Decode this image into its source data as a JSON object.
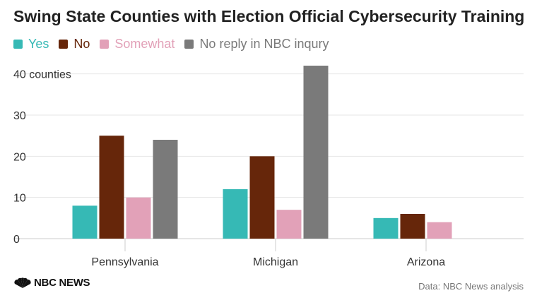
{
  "title": "Swing State Counties with Election Official Cybersecurity Training",
  "legend": [
    {
      "label": "Yes",
      "color": "#36b9b5"
    },
    {
      "label": "No",
      "color": "#66260a"
    },
    {
      "label": "Somewhat",
      "color": "#e2a1b8"
    },
    {
      "label": "No reply in NBC inqury",
      "color": "#7a7a7a"
    }
  ],
  "source": "Data: NBC News analysis",
  "logo": {
    "text": "NBC NEWS",
    "icon": "nbc-peacock-icon"
  },
  "chart_data": {
    "type": "bar",
    "categories": [
      "Pennsylvania",
      "Michigan",
      "Arizona"
    ],
    "series": [
      {
        "name": "Yes",
        "color": "#36b9b5",
        "values": [
          8,
          12,
          5
        ]
      },
      {
        "name": "No",
        "color": "#66260a",
        "values": [
          25,
          20,
          6
        ]
      },
      {
        "name": "Somewhat",
        "color": "#e2a1b8",
        "values": [
          10,
          7,
          4
        ]
      },
      {
        "name": "No reply in NBC inqury",
        "color": "#7a7a7a",
        "values": [
          24,
          42,
          null
        ]
      }
    ],
    "y_ticks": [
      "0",
      "10",
      "20",
      "30",
      "40 counties"
    ],
    "y_tick_values": [
      0,
      10,
      20,
      30,
      40
    ],
    "ylim": [
      0,
      42
    ],
    "grid": true,
    "legend_position": "top-left"
  }
}
